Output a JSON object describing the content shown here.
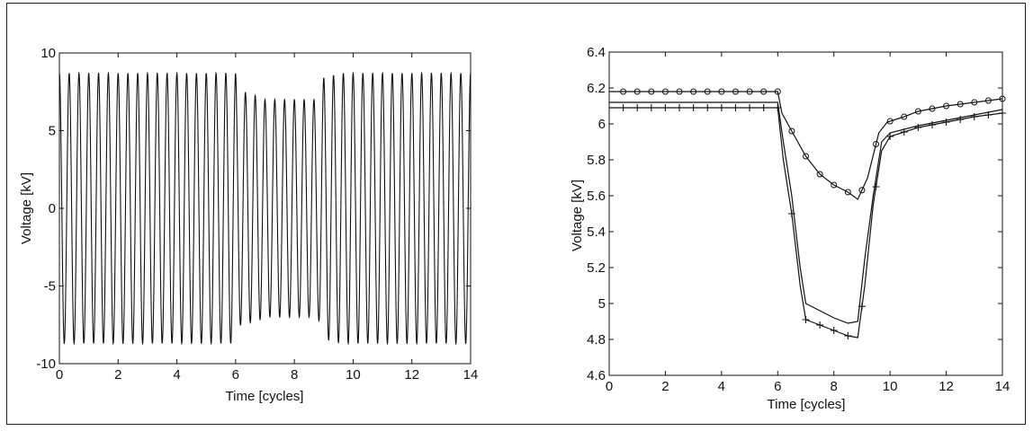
{
  "chart_data": [
    {
      "type": "line",
      "xlabel": "Time [cycles]",
      "ylabel": "Voltage [kV]",
      "xlim": [
        0,
        14
      ],
      "ylim": [
        -10,
        10
      ],
      "x_ticks": [
        "0",
        "2",
        "4",
        "6",
        "8",
        "10",
        "12",
        "14"
      ],
      "y_ticks": [
        "-10",
        "-5",
        "0",
        "5",
        "10"
      ],
      "grid": false,
      "series": [
        {
          "waveform": "sinusoid",
          "cycles_per_unit": 3,
          "amplitude_envelope": [
            {
              "t": 0,
              "amp": 8.7
            },
            {
              "t": 6,
              "amp": 8.7
            },
            {
              "t": 6.05,
              "amp": 7.6
            },
            {
              "t": 6.8,
              "amp": 7.2
            },
            {
              "t": 7.0,
              "amp": 7.0
            },
            {
              "t": 8.8,
              "amp": 7.0
            },
            {
              "t": 9.0,
              "amp": 8.4
            },
            {
              "t": 9.6,
              "amp": 8.7
            },
            {
              "t": 14,
              "amp": 8.7
            }
          ]
        }
      ]
    },
    {
      "type": "line",
      "xlabel": "Time [cycles]",
      "ylabel": "Voltage [kV]",
      "xlim": [
        0,
        14
      ],
      "ylim": [
        4.6,
        6.4
      ],
      "x_ticks": [
        "0",
        "2",
        "4",
        "6",
        "8",
        "10",
        "12",
        "14"
      ],
      "y_ticks": [
        "4.6",
        "4.8",
        "5",
        "5.2",
        "5.4",
        "5.6",
        "5.8",
        "6",
        "6.2",
        "6.4"
      ],
      "grid": false,
      "series": [
        {
          "marker": "circle",
          "x": [
            0,
            6.0,
            6.15,
            6.5,
            7.0,
            7.5,
            8.0,
            8.5,
            8.85,
            9.2,
            9.6,
            9.9,
            10.5,
            11,
            12,
            13,
            14
          ],
          "y": [
            6.18,
            6.18,
            6.06,
            5.96,
            5.82,
            5.72,
            5.66,
            5.62,
            5.58,
            5.7,
            5.95,
            6.01,
            6.04,
            6.07,
            6.1,
            6.12,
            6.14
          ]
        },
        {
          "marker": "none",
          "x": [
            0,
            6.0,
            6.2,
            6.5,
            6.8,
            7.0,
            7.5,
            8.0,
            8.5,
            8.85,
            9.1,
            9.4,
            9.7,
            10,
            11,
            12,
            13,
            14
          ],
          "y": [
            6.12,
            6.12,
            5.9,
            5.6,
            5.2,
            5.0,
            4.96,
            4.92,
            4.89,
            4.9,
            5.25,
            5.6,
            5.9,
            5.95,
            5.99,
            6.02,
            6.05,
            6.08
          ]
        },
        {
          "marker": "plus",
          "x": [
            0,
            6.0,
            6.2,
            6.5,
            6.8,
            7.0,
            7.5,
            8.0,
            8.5,
            8.85,
            9.1,
            9.4,
            9.7,
            10,
            11,
            12,
            13,
            14
          ],
          "y": [
            6.09,
            6.09,
            5.8,
            5.5,
            5.1,
            4.91,
            4.88,
            4.85,
            4.82,
            4.81,
            5.1,
            5.55,
            5.85,
            5.93,
            5.98,
            6.01,
            6.04,
            6.06
          ]
        }
      ]
    }
  ]
}
